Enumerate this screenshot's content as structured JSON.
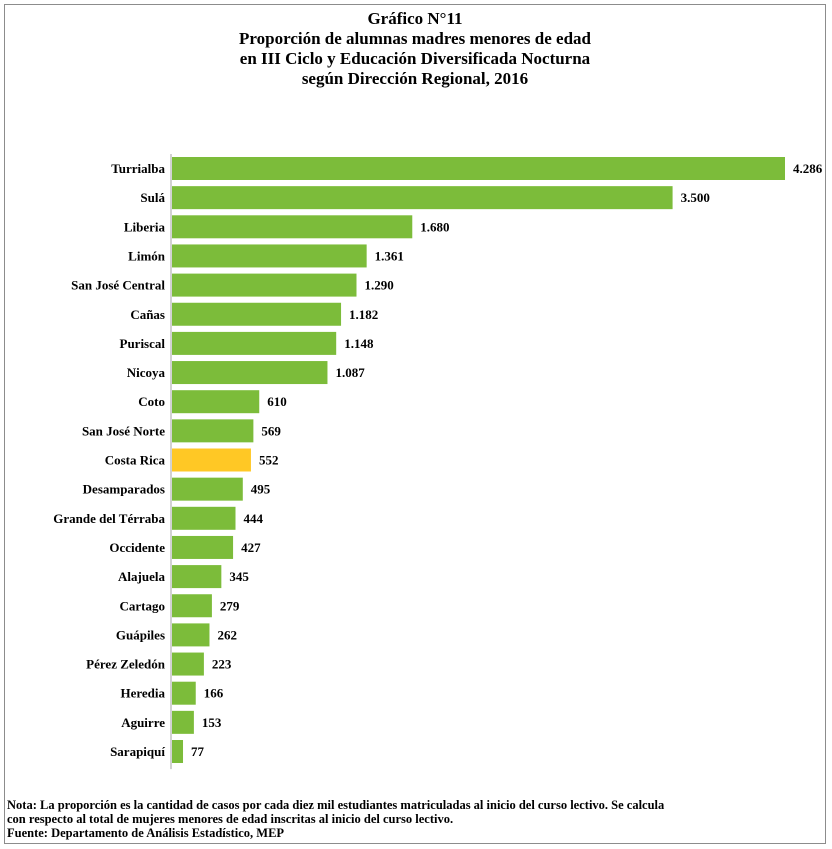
{
  "title_lines": [
    "Gráfico N°11",
    "Proporción de alumnas madres menores de edad",
    "en III  Ciclo y Educación Diversificada Nocturna",
    "según Dirección Regional, 2016"
  ],
  "notes": {
    "line1": "Nota: La proporción  es la cantidad de casos por cada diez mil estudiantes matriculadas al inicio del curso lectivo. Se calcula",
    "line2": "con respecto al total de mujeres menores de edad inscritas al inicio del curso lectivo.",
    "line3": "Fuente: Departamento de Análisis Estadístico, MEP"
  },
  "colors": {
    "bar": "#7cbc3a",
    "highlight": "#ffc825",
    "axis": "#a6a6a6"
  },
  "chart_data": {
    "type": "bar",
    "orientation": "horizontal",
    "categories": [
      "Turrialba",
      "Sulá",
      "Liberia",
      "Limón",
      "San José Central",
      "Cañas",
      "Puriscal",
      "Nicoya",
      "Coto",
      "San José Norte",
      "Costa Rica",
      "Desamparados",
      "Grande del Térraba",
      "Occidente",
      "Alajuela",
      "Cartago",
      "Guápiles",
      "Pérez Zeledón",
      "Heredia",
      "Aguirre",
      "Sarapiquí"
    ],
    "values": [
      4.286,
      3.5,
      1.68,
      1.361,
      1.29,
      1.182,
      1.148,
      1.087,
      0.61,
      0.569,
      0.552,
      0.495,
      0.444,
      0.427,
      0.345,
      0.279,
      0.262,
      0.223,
      0.166,
      0.153,
      0.077
    ],
    "labels": [
      "4.286",
      "3.500",
      "1.680",
      "1.361",
      "1.290",
      "1.182",
      "1.148",
      "1.087",
      "610",
      "569",
      "552",
      "495",
      "444",
      "427",
      "345",
      "279",
      "262",
      "223",
      "166",
      "153",
      "77"
    ],
    "highlight_category": "Costa Rica",
    "title": "Proporción de alumnas madres menores de edad en III Ciclo y Educación Diversificada Nocturna según Dirección Regional, 2016",
    "xlabel": "",
    "ylabel": "",
    "xlim": [
      0,
      4.286
    ],
    "grid": false,
    "legend": "none"
  }
}
